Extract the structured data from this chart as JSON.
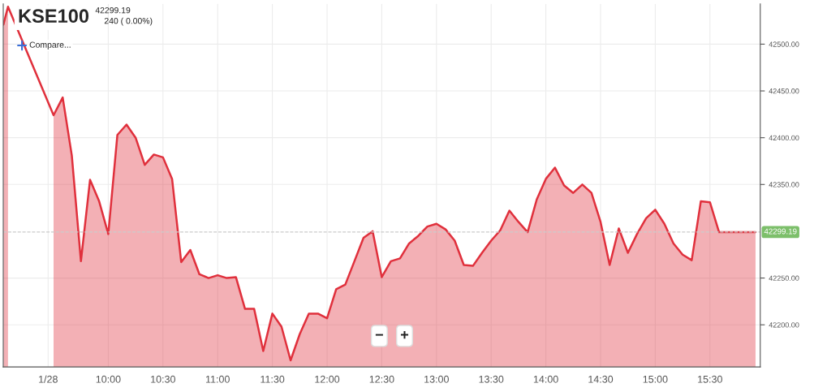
{
  "chart_data": {
    "type": "area",
    "title": "KSE100",
    "subtitle": "42299.19",
    "annotations": [
      "240 ( 0.00%)",
      "Compare...",
      "−",
      "+"
    ],
    "x": [
      9.0417,
      9.0833,
      9.1667,
      9.25,
      9.3333,
      9.4167,
      9.5,
      9.5833,
      9.6667,
      9.75,
      9.8333,
      9.9167,
      10.0,
      10.0833,
      10.1667,
      10.25,
      10.3333,
      10.4167,
      10.5,
      10.5833,
      10.6667,
      10.75,
      10.8333,
      10.9167,
      11.0,
      11.0833,
      11.1667,
      11.25,
      11.3333,
      11.4167,
      11.5,
      11.5833,
      11.6667,
      11.75,
      11.8333,
      11.9167,
      12.0,
      12.0833,
      12.1667,
      12.25,
      12.3333,
      12.4167,
      12.5,
      12.5833,
      12.6667,
      12.75,
      12.8333,
      12.9167,
      13.0,
      13.0833,
      13.1667,
      13.25,
      13.3333,
      13.4167,
      13.5,
      13.5833,
      13.6667,
      13.75,
      13.8333,
      13.9167,
      14.0,
      14.0833,
      14.1667,
      14.25,
      14.3333,
      14.4167,
      14.5,
      14.5833,
      14.6667,
      14.75,
      14.8333,
      14.9167,
      15.0,
      15.0833,
      15.1667,
      15.25,
      15.3333,
      15.4167,
      15.5,
      15.5833,
      15.9167
    ],
    "series": [
      {
        "color": "#e0303c",
        "values": [
          42521,
          42540,
          null,
          null,
          null,
          null,
          42424,
          42443,
          42381,
          42268,
          42355,
          42332,
          42297,
          42403,
          42414,
          42400,
          42371,
          42382,
          42379,
          42356,
          42267,
          42280,
          42254,
          42250,
          42253,
          42250,
          42251,
          42217,
          42217,
          42172,
          42212,
          42198,
          42162,
          42190,
          42212,
          42212,
          42207,
          42238,
          42243,
          42268,
          42293,
          42300,
          42251,
          42268,
          42271,
          42287,
          42295,
          42305,
          42308,
          42302,
          42290,
          42264,
          42263,
          42277,
          42290,
          42301,
          42322,
          42310,
          42299,
          42334,
          42356,
          42368,
          42349,
          42341,
          42350,
          42341,
          42310,
          42264,
          42303,
          42277,
          42297,
          42314,
          42323,
          42308,
          42287,
          42275,
          42269,
          42332,
          42331,
          42299,
          42299
        ]
      }
    ],
    "xlim": [
      9.04,
      15.96
    ],
    "ylim": [
      42155,
      42543
    ],
    "xticks": [
      {
        "value": 9.45,
        "label": "1/28"
      },
      {
        "value": 10,
        "label": "10:00"
      },
      {
        "value": 10.5,
        "label": "10:30"
      },
      {
        "value": 11,
        "label": "11:00"
      },
      {
        "value": 11.5,
        "label": "11:30"
      },
      {
        "value": 12,
        "label": "12:00"
      },
      {
        "value": 12.5,
        "label": "12:30"
      },
      {
        "value": 13,
        "label": "13:00"
      },
      {
        "value": 13.5,
        "label": "13:30"
      },
      {
        "value": 14,
        "label": "14:00"
      },
      {
        "value": 14.5,
        "label": "14:30"
      },
      {
        "value": 15,
        "label": "15:00"
      },
      {
        "value": 15.5,
        "label": "15:30"
      }
    ],
    "yticks": [
      {
        "value": 42200,
        "label": "42200.00"
      },
      {
        "value": 42250,
        "label": "42250.00"
      },
      {
        "value": 42350,
        "label": "42350.00"
      },
      {
        "value": 42400,
        "label": "42400.00"
      },
      {
        "value": 42450,
        "label": "42450.00"
      },
      {
        "value": 42500,
        "label": "42500.00"
      }
    ],
    "ref_lines": [
      {
        "axis": "y",
        "value": 42299.19,
        "label": "42299.19",
        "color": "#cccccc",
        "line_style": "dashed"
      }
    ],
    "grid": true
  }
}
